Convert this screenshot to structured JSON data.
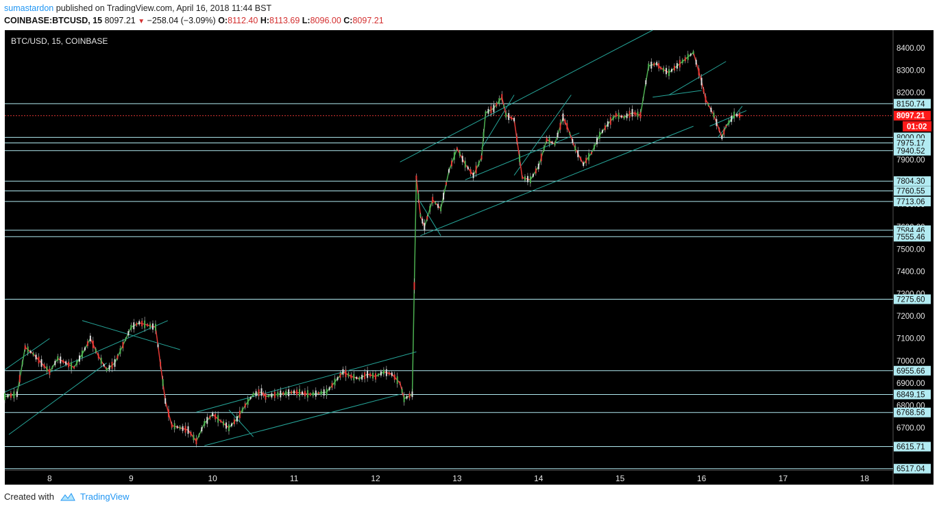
{
  "header": {
    "author": "sumastardon",
    "published_text": "published on TradingView.com, April 16, 2018 11:44 BST",
    "symbol": "COINBASE:BTCUSD, 15",
    "last": "8097.21",
    "change": "−258.04 (−3.09%)",
    "o_label": "O:",
    "o": "8112.40",
    "h_label": "H:",
    "h": "8113.69",
    "l_label": "L:",
    "l": "8096.00",
    "c_label": "C:",
    "c": "8097.21"
  },
  "footer": {
    "created_with": "Created with",
    "brand": "TradingView"
  },
  "chart_data": {
    "type": "line",
    "symbol_label": "BTC/USD, 15, COINBASE",
    "ylim": [
      6510,
      8480
    ],
    "xlim": [
      7.45,
      18.35
    ],
    "y_ticks": [
      "6700.00",
      "6800.00",
      "6900.00",
      "7000.00",
      "7100.00",
      "7200.00",
      "7300.00",
      "7400.00",
      "7500.00",
      "7600.00",
      "7700.00",
      "7800.00",
      "7900.00",
      "8000.00",
      "8200.00",
      "8300.00",
      "8400.00"
    ],
    "x_ticks": [
      "8",
      "9",
      "10",
      "11",
      "12",
      "13",
      "14",
      "15",
      "16",
      "17",
      "18"
    ],
    "series": [
      {
        "x": [
          7.45,
          7.6,
          7.7,
          7.8,
          7.9,
          8.0,
          8.1,
          8.2,
          8.3,
          8.4,
          8.5,
          8.6,
          8.7,
          8.8,
          8.9,
          9.0,
          9.1,
          9.2,
          9.3,
          9.42,
          9.5,
          9.6,
          9.7,
          9.8,
          9.9,
          10.0,
          10.1,
          10.2,
          10.3,
          10.4,
          10.5,
          10.6,
          10.65,
          10.8,
          11.0,
          11.2,
          11.4,
          11.6,
          11.7,
          11.8,
          11.9,
          12.0,
          12.1,
          12.2,
          12.3,
          12.35,
          12.45,
          12.5,
          12.55,
          12.6,
          12.7,
          12.8,
          12.9,
          13.0,
          13.1,
          13.2,
          13.3,
          13.35,
          13.45,
          13.55,
          13.6,
          13.7,
          13.8,
          13.9,
          14.0,
          14.1,
          14.2,
          14.3,
          14.35,
          14.45,
          14.55,
          14.65,
          14.75,
          14.85,
          14.95,
          15.05,
          15.15,
          15.25,
          15.35,
          15.45,
          15.5,
          15.6,
          15.7,
          15.8,
          15.9,
          16.0,
          16.05,
          16.15,
          16.25,
          16.3,
          16.4,
          16.5
        ],
        "y": [
          6840,
          6850,
          7060,
          7030,
          6990,
          6950,
          7010,
          6990,
          6970,
          7030,
          7100,
          7020,
          6960,
          6990,
          7070,
          7150,
          7170,
          7160,
          7150,
          6820,
          6710,
          6700,
          6690,
          6640,
          6720,
          6760,
          6730,
          6700,
          6740,
          6800,
          6850,
          6860,
          6840,
          6850,
          6860,
          6850,
          6860,
          6950,
          6930,
          6920,
          6940,
          6930,
          6950,
          6940,
          6900,
          6830,
          6850,
          7820,
          7650,
          7600,
          7720,
          7680,
          7850,
          7950,
          7880,
          7830,
          7910,
          8110,
          8130,
          8180,
          8100,
          8080,
          7820,
          7810,
          7870,
          7990,
          7970,
          8090,
          8050,
          7950,
          7880,
          7930,
          8010,
          8060,
          8100,
          8090,
          8110,
          8100,
          8320,
          8330,
          8310,
          8290,
          8320,
          8350,
          8380,
          8250,
          8170,
          8100,
          8000,
          8050,
          8100,
          8097.21
        ]
      }
    ],
    "h_levels": [
      "8150.74",
      "8097.21",
      "8000.00",
      "7975.17",
      "7940.52",
      "7804.30",
      "7760.55",
      "7713.06",
      "7584.46",
      "7555.46",
      "7275.60",
      "6955.66",
      "6849.15",
      "6768.56",
      "6615.71",
      "6517.04"
    ],
    "countdown": "01:02",
    "colors": {
      "background": "#000000",
      "up": "#4caf50",
      "down": "#e53935",
      "level": "#b2ebf2",
      "trend": "#26a69a",
      "price_line": "#e53935"
    }
  }
}
